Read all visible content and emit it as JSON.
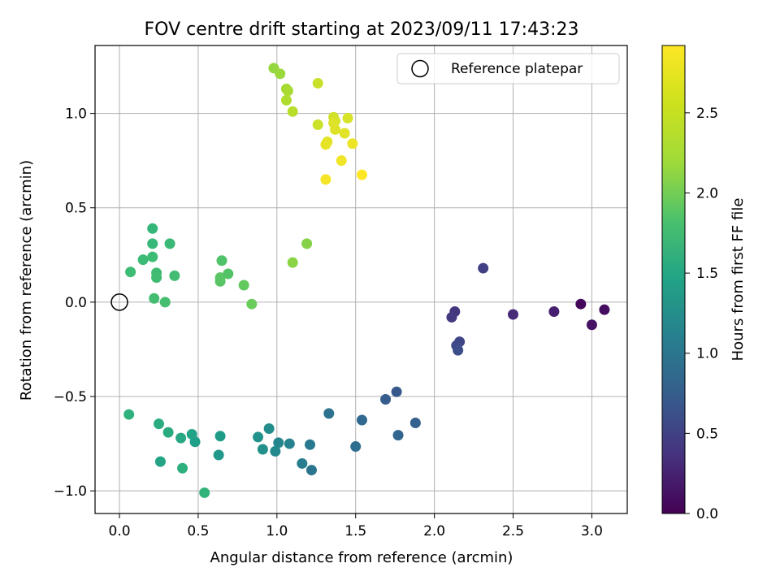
{
  "chart_data": {
    "type": "scatter",
    "title": "FOV centre drift starting at 2023/09/11 17:43:23",
    "xlabel": "Angular distance from reference (arcmin)",
    "ylabel": "Rotation from reference (arcmin)",
    "xlim": [
      -0.155,
      3.225
    ],
    "ylim": [
      -1.12,
      1.36
    ],
    "xticks": [
      0.0,
      0.5,
      1.0,
      1.5,
      2.0,
      2.5,
      3.0
    ],
    "xtick_labels": [
      "0.0",
      "0.5",
      "1.0",
      "1.5",
      "2.0",
      "2.5",
      "3.0"
    ],
    "yticks": [
      -1.0,
      -0.5,
      0.0,
      0.5,
      1.0
    ],
    "ytick_labels": [
      "−1.0",
      "−0.5",
      "0.0",
      "0.5",
      "1.0"
    ],
    "grid": true,
    "legend": {
      "placement": "top-right",
      "label": "Reference platepar"
    },
    "reference_point": {
      "x": 0.0,
      "y": 0.0
    },
    "colorbar": {
      "label": "Hours from first FF file",
      "colormap": "viridis",
      "min": 0.0,
      "max": 2.92,
      "ticks": [
        0.0,
        0.5,
        1.0,
        1.5,
        2.0,
        2.5
      ],
      "tick_labels": [
        "0.0",
        "0.5",
        "1.0",
        "1.5",
        "2.0",
        "2.5"
      ]
    },
    "points": [
      {
        "x": 2.93,
        "y": -0.01,
        "c": 0.05
      },
      {
        "x": 3.08,
        "y": -0.04,
        "c": 0.1
      },
      {
        "x": 3.0,
        "y": -0.12,
        "c": 0.15
      },
      {
        "x": 2.76,
        "y": -0.05,
        "c": 0.25
      },
      {
        "x": 2.5,
        "y": -0.065,
        "c": 0.35
      },
      {
        "x": 2.13,
        "y": -0.05,
        "c": 0.45
      },
      {
        "x": 2.11,
        "y": -0.08,
        "c": 0.5
      },
      {
        "x": 2.31,
        "y": 0.18,
        "c": 0.55
      },
      {
        "x": 2.16,
        "y": -0.21,
        "c": 0.6
      },
      {
        "x": 2.14,
        "y": -0.23,
        "c": 0.65
      },
      {
        "x": 2.15,
        "y": -0.255,
        "c": 0.7
      },
      {
        "x": 1.76,
        "y": -0.475,
        "c": 0.8
      },
      {
        "x": 1.69,
        "y": -0.515,
        "c": 0.85
      },
      {
        "x": 1.88,
        "y": -0.64,
        "c": 0.9
      },
      {
        "x": 1.77,
        "y": -0.705,
        "c": 0.95
      },
      {
        "x": 1.54,
        "y": -0.625,
        "c": 1.0
      },
      {
        "x": 1.5,
        "y": -0.765,
        "c": 1.05
      },
      {
        "x": 1.33,
        "y": -0.59,
        "c": 1.1
      },
      {
        "x": 1.22,
        "y": -0.89,
        "c": 1.15
      },
      {
        "x": 1.21,
        "y": -0.755,
        "c": 1.2
      },
      {
        "x": 1.16,
        "y": -0.855,
        "c": 1.25
      },
      {
        "x": 1.08,
        "y": -0.75,
        "c": 1.3
      },
      {
        "x": 1.01,
        "y": -0.745,
        "c": 1.35
      },
      {
        "x": 0.99,
        "y": -0.79,
        "c": 1.38
      },
      {
        "x": 0.95,
        "y": -0.67,
        "c": 1.42
      },
      {
        "x": 0.91,
        "y": -0.78,
        "c": 1.46
      },
      {
        "x": 0.88,
        "y": -0.715,
        "c": 1.5
      },
      {
        "x": 0.63,
        "y": -0.81,
        "c": 1.55
      },
      {
        "x": 0.64,
        "y": -0.71,
        "c": 1.6
      },
      {
        "x": 0.48,
        "y": -0.74,
        "c": 1.63
      },
      {
        "x": 0.46,
        "y": -0.7,
        "c": 1.67
      },
      {
        "x": 0.26,
        "y": -0.845,
        "c": 1.7
      },
      {
        "x": 0.39,
        "y": -0.72,
        "c": 1.74
      },
      {
        "x": 0.31,
        "y": -0.69,
        "c": 1.78
      },
      {
        "x": 0.25,
        "y": -0.645,
        "c": 1.8
      },
      {
        "x": 0.4,
        "y": -0.88,
        "c": 1.84
      },
      {
        "x": 0.06,
        "y": -0.595,
        "c": 1.87
      },
      {
        "x": 0.54,
        "y": -1.01,
        "c": 1.9
      },
      {
        "x": 0.21,
        "y": 0.39,
        "c": 1.94
      },
      {
        "x": 0.21,
        "y": 0.31,
        "c": 1.96
      },
      {
        "x": 0.32,
        "y": 0.31,
        "c": 1.98
      },
      {
        "x": 0.15,
        "y": 0.225,
        "c": 1.99
      },
      {
        "x": 0.21,
        "y": 0.24,
        "c": 2.0
      },
      {
        "x": 0.07,
        "y": 0.16,
        "c": 2.0
      },
      {
        "x": 0.235,
        "y": 0.155,
        "c": 2.01
      },
      {
        "x": 0.235,
        "y": 0.13,
        "c": 2.02
      },
      {
        "x": 0.35,
        "y": 0.14,
        "c": 2.02
      },
      {
        "x": 0.22,
        "y": 0.02,
        "c": 2.03
      },
      {
        "x": 0.29,
        "y": 0.0,
        "c": 2.04
      },
      {
        "x": 0.65,
        "y": 0.22,
        "c": 2.1
      },
      {
        "x": 0.69,
        "y": 0.15,
        "c": 2.12
      },
      {
        "x": 0.64,
        "y": 0.11,
        "c": 2.14
      },
      {
        "x": 0.64,
        "y": 0.13,
        "c": 2.15
      },
      {
        "x": 0.79,
        "y": 0.09,
        "c": 2.2
      },
      {
        "x": 0.84,
        "y": -0.01,
        "c": 2.24
      },
      {
        "x": 1.19,
        "y": 0.31,
        "c": 2.38
      },
      {
        "x": 1.1,
        "y": 0.21,
        "c": 2.4
      },
      {
        "x": 0.98,
        "y": 1.24,
        "c": 2.45
      },
      {
        "x": 1.02,
        "y": 1.21,
        "c": 2.47
      },
      {
        "x": 1.06,
        "y": 1.13,
        "c": 2.52
      },
      {
        "x": 1.07,
        "y": 1.12,
        "c": 2.54
      },
      {
        "x": 1.06,
        "y": 1.07,
        "c": 2.57
      },
      {
        "x": 1.1,
        "y": 1.01,
        "c": 2.6
      },
      {
        "x": 1.26,
        "y": 1.16,
        "c": 2.68
      },
      {
        "x": 1.26,
        "y": 0.94,
        "c": 2.7
      },
      {
        "x": 1.36,
        "y": 0.98,
        "c": 2.72
      },
      {
        "x": 1.37,
        "y": 0.96,
        "c": 2.73
      },
      {
        "x": 1.45,
        "y": 0.975,
        "c": 2.75
      },
      {
        "x": 1.36,
        "y": 0.95,
        "c": 2.77
      },
      {
        "x": 1.37,
        "y": 0.915,
        "c": 2.78
      },
      {
        "x": 1.43,
        "y": 0.895,
        "c": 2.79
      },
      {
        "x": 1.32,
        "y": 0.85,
        "c": 2.8
      },
      {
        "x": 1.31,
        "y": 0.835,
        "c": 2.82
      },
      {
        "x": 1.48,
        "y": 0.84,
        "c": 2.84
      },
      {
        "x": 1.41,
        "y": 0.75,
        "c": 2.86
      },
      {
        "x": 1.31,
        "y": 0.65,
        "c": 2.88
      },
      {
        "x": 1.54,
        "y": 0.675,
        "c": 2.92
      }
    ]
  }
}
